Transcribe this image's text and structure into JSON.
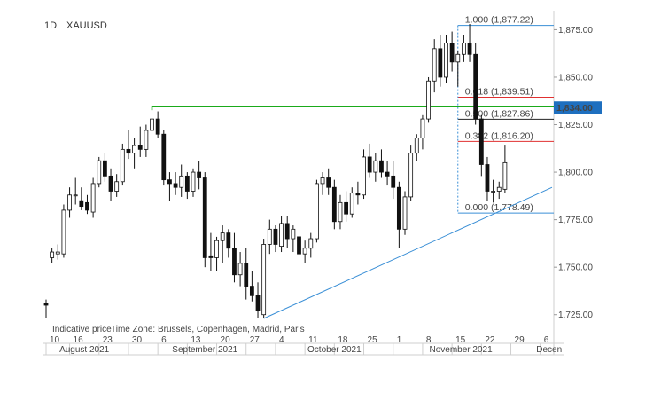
{
  "header": {
    "timeframe": "1D",
    "symbol": "XAUUSD"
  },
  "footer_note": {
    "indicative": "Indicative price",
    "timezone": "Time Zone: Brussels, Copenhagen, Madrid, Paris"
  },
  "chart_data": {
    "type": "candlestick",
    "symbol": "XAUUSD",
    "interval": "1D",
    "y_axis": {
      "ticks": [
        1725,
        1750,
        1775,
        1800,
        1825,
        1850,
        1875
      ],
      "tick_labels": [
        "1,725.00",
        "1,750.00",
        "1,775.00",
        "1,800.00",
        "1,825.00",
        "1,850.00",
        "1,875.00"
      ],
      "range": [
        1716,
        1885
      ]
    },
    "x_axis": {
      "day_labels": [
        "10",
        "16",
        "23",
        "30",
        "6",
        "13",
        "20",
        "27",
        "4",
        "11",
        "18",
        "25",
        "1",
        "8",
        "15",
        "22",
        "29",
        "6"
      ],
      "day_label_index": [
        0,
        4,
        9,
        14,
        19,
        24,
        29,
        34,
        39,
        44,
        49,
        54,
        59,
        64,
        69,
        74,
        79,
        84
      ],
      "month_labels": [
        "August 2021",
        "September 2021",
        "October 2021",
        "November 2021",
        "Decen"
      ],
      "month_label_index": [
        6.5,
        27,
        49,
        70.5,
        85.5
      ],
      "index_range": [
        0,
        86
      ]
    },
    "current_price": {
      "value": 1834.0,
      "label": "1,834.00",
      "color": "#1e6fbf"
    },
    "candles": [
      [
        1731,
        1733,
        1723,
        1730
      ],
      [
        1755,
        1760,
        1752,
        1758
      ],
      [
        1757,
        1762,
        1754,
        1758
      ],
      [
        1757,
        1783,
        1755,
        1780
      ],
      [
        1780,
        1792,
        1776,
        1788
      ],
      [
        1788,
        1797,
        1783,
        1788
      ],
      [
        1785,
        1792,
        1780,
        1782
      ],
      [
        1784,
        1788,
        1778,
        1780
      ],
      [
        1779,
        1797,
        1776,
        1794
      ],
      [
        1794,
        1808,
        1792,
        1806
      ],
      [
        1806,
        1810,
        1795,
        1798
      ],
      [
        1798,
        1802,
        1785,
        1790
      ],
      [
        1790,
        1799,
        1787,
        1795
      ],
      [
        1795,
        1815,
        1793,
        1812
      ],
      [
        1812,
        1822,
        1807,
        1810
      ],
      [
        1810,
        1818,
        1802,
        1814
      ],
      [
        1814,
        1824,
        1808,
        1812
      ],
      [
        1812,
        1825,
        1808,
        1822
      ],
      [
        1822,
        1834,
        1818,
        1828
      ],
      [
        1828,
        1832,
        1818,
        1820
      ],
      [
        1820,
        1822,
        1793,
        1796
      ],
      [
        1796,
        1800,
        1785,
        1794
      ],
      [
        1794,
        1800,
        1788,
        1792
      ],
      [
        1792,
        1804,
        1787,
        1798
      ],
      [
        1798,
        1800,
        1786,
        1790
      ],
      [
        1790,
        1802,
        1787,
        1800
      ],
      [
        1800,
        1806,
        1791,
        1797
      ],
      [
        1797,
        1800,
        1750,
        1755
      ],
      [
        1756,
        1768,
        1748,
        1755
      ],
      [
        1755,
        1766,
        1748,
        1764
      ],
      [
        1764,
        1772,
        1752,
        1768
      ],
      [
        1768,
        1770,
        1755,
        1760
      ],
      [
        1760,
        1768,
        1742,
        1746
      ],
      [
        1746,
        1758,
        1740,
        1752
      ],
      [
        1752,
        1760,
        1733,
        1740
      ],
      [
        1740,
        1748,
        1732,
        1735
      ],
      [
        1735,
        1742,
        1723,
        1727
      ],
      [
        1725,
        1765,
        1723,
        1762
      ],
      [
        1762,
        1775,
        1757,
        1770
      ],
      [
        1770,
        1772,
        1758,
        1762
      ],
      [
        1761,
        1777,
        1758,
        1773
      ],
      [
        1773,
        1777,
        1760,
        1765
      ],
      [
        1765,
        1772,
        1758,
        1770
      ],
      [
        1766,
        1768,
        1750,
        1757
      ],
      [
        1757,
        1764,
        1752,
        1760
      ],
      [
        1760,
        1768,
        1755,
        1765
      ],
      [
        1765,
        1796,
        1763,
        1794
      ],
      [
        1794,
        1800,
        1788,
        1797
      ],
      [
        1797,
        1802,
        1788,
        1792
      ],
      [
        1792,
        1796,
        1770,
        1774
      ],
      [
        1774,
        1788,
        1770,
        1784
      ],
      [
        1784,
        1790,
        1774,
        1778
      ],
      [
        1778,
        1792,
        1776,
        1789
      ],
      [
        1789,
        1795,
        1783,
        1788
      ],
      [
        1788,
        1812,
        1786,
        1808
      ],
      [
        1808,
        1815,
        1797,
        1800
      ],
      [
        1800,
        1810,
        1795,
        1806
      ],
      [
        1806,
        1812,
        1797,
        1800
      ],
      [
        1800,
        1806,
        1793,
        1798
      ],
      [
        1798,
        1806,
        1786,
        1792
      ],
      [
        1792,
        1795,
        1760,
        1770
      ],
      [
        1770,
        1790,
        1767,
        1787
      ],
      [
        1787,
        1814,
        1785,
        1810
      ],
      [
        1810,
        1820,
        1806,
        1818
      ],
      [
        1818,
        1830,
        1812,
        1828
      ],
      [
        1828,
        1850,
        1826,
        1848
      ],
      [
        1848,
        1870,
        1842,
        1865
      ],
      [
        1865,
        1872,
        1845,
        1850
      ],
      [
        1850,
        1872,
        1847,
        1868
      ],
      [
        1868,
        1874,
        1853,
        1858
      ],
      [
        1858,
        1864,
        1845,
        1862
      ],
      [
        1862,
        1872,
        1858,
        1868
      ],
      [
        1868,
        1878,
        1858,
        1862
      ],
      [
        1862,
        1868,
        1825,
        1828
      ],
      [
        1828,
        1830,
        1798,
        1804
      ],
      [
        1804,
        1808,
        1785,
        1790
      ],
      [
        1790,
        1796,
        1784,
        1790
      ],
      [
        1790,
        1795,
        1786,
        1792
      ],
      [
        1791,
        1814,
        1789,
        1805
      ]
    ],
    "fibonacci": {
      "levels": [
        {
          "ratio": "1.000",
          "price": "1,877.22",
          "value": 1877.22,
          "color": "#3a8fd6"
        },
        {
          "ratio": "0.618",
          "price": "1,839.51",
          "value": 1839.51,
          "color": "#e03030"
        },
        {
          "ratio": "0.500",
          "price": "1,827.86",
          "value": 1827.86,
          "color": "#222222"
        },
        {
          "ratio": "0.382",
          "price": "1,816.20",
          "value": 1816.2,
          "color": "#e03030"
        },
        {
          "ratio": "0.000",
          "price": "1,778.49",
          "value": 1778.49,
          "color": "#3a8fd6"
        }
      ],
      "start_index": 70
    },
    "horizontal_line": {
      "value": 1834.5,
      "from_index": 18,
      "color": "#1aaa1a"
    },
    "trendline": {
      "from": [
        37,
        1723
      ],
      "to": [
        86,
        1792
      ],
      "color": "#3a8fd6"
    }
  }
}
